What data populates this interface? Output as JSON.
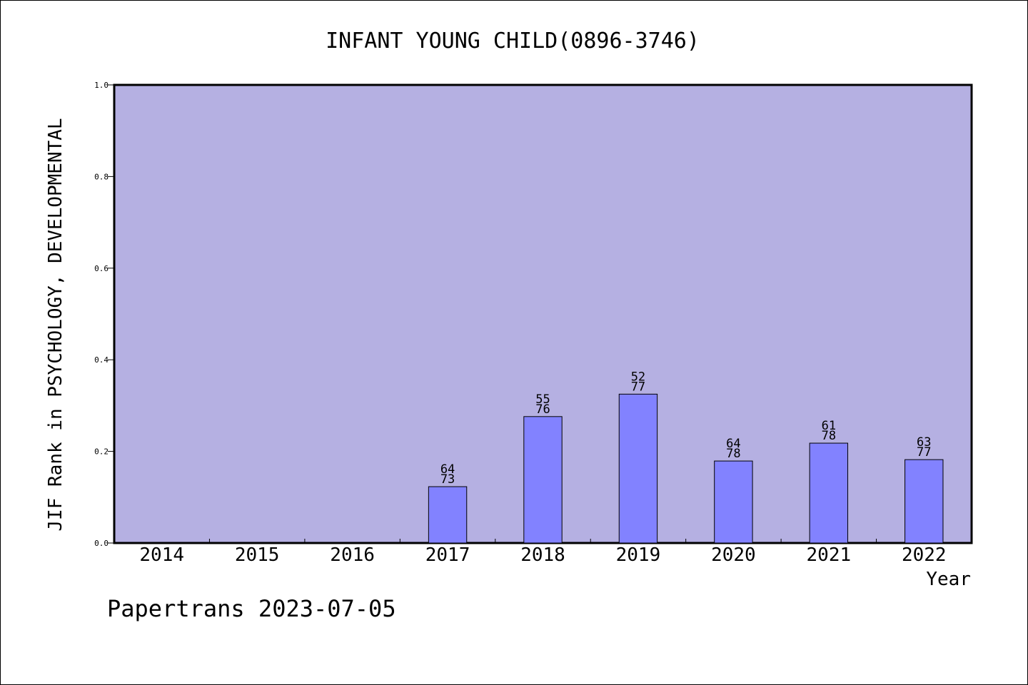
{
  "chart_data": {
    "type": "bar",
    "title": "INFANT YOUNG CHILD(0896-3746)",
    "xlabel": "Year",
    "ylabel": "JIF Rank in PSYCHOLOGY, DEVELOPMENTAL",
    "ylim": [
      0,
      1.0
    ],
    "yticks": [
      "0.0",
      "0.2",
      "0.4",
      "0.6",
      "0.8",
      "1.0"
    ],
    "grid": false,
    "categories": [
      "2014",
      "2015",
      "2016",
      "2017",
      "2018",
      "2019",
      "2020",
      "2021",
      "2022"
    ],
    "values": [
      null,
      null,
      null,
      0.123,
      0.276,
      0.325,
      0.179,
      0.218,
      0.182
    ],
    "labels": [
      null,
      null,
      null,
      [
        "64",
        "73"
      ],
      [
        "55",
        "76"
      ],
      [
        "52",
        "77"
      ],
      [
        "64",
        "78"
      ],
      [
        "61",
        "78"
      ],
      [
        "63",
        "77"
      ]
    ],
    "colors": {
      "plot_background": "#b5b0e2",
      "bar_fill": "#8282ff",
      "bar_stroke": "#000000"
    }
  },
  "footer": "Papertrans 2023-07-05"
}
